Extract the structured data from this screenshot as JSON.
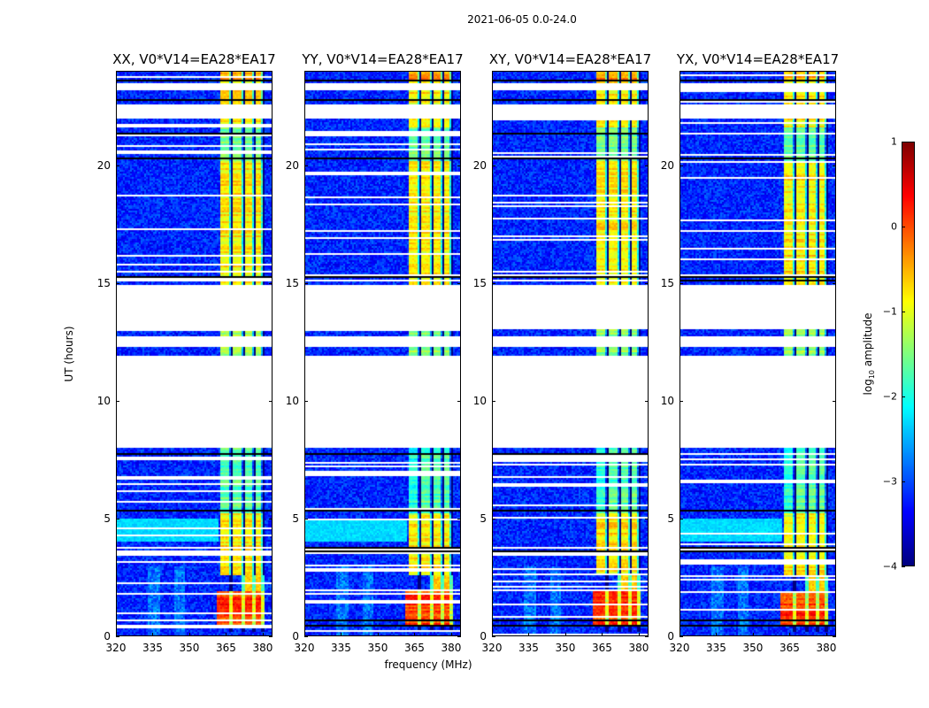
{
  "chart_data": {
    "type": "heatmap",
    "title": "2021-06-05 0.0-24.0",
    "xlabel": "frequency (MHz)",
    "ylabel": "UT (hours)",
    "xlim": [
      320,
      384
    ],
    "ylim": [
      0,
      24
    ],
    "xticks": [
      "320",
      "335",
      "350",
      "365",
      "380"
    ],
    "yticks": [
      "0",
      "5",
      "10",
      "15",
      "20"
    ],
    "panels": [
      {
        "title": "XX, V0*V14=EA28*EA17",
        "seed": 1
      },
      {
        "title": "YY, V0*V14=EA28*EA17",
        "seed": 2
      },
      {
        "title": "XY, V0*V14=EA28*EA17",
        "seed": 3
      },
      {
        "title": "YX, V0*V14=EA28*EA17",
        "seed": 4
      }
    ],
    "colorbar": {
      "label_main": "log",
      "label_sub": "10",
      "label_rest": " amplitude",
      "range": [
        -4,
        1
      ],
      "ticks": [
        "1",
        "0",
        "−1",
        "−2",
        "−3",
        "−4"
      ],
      "colormap": "jet"
    },
    "background_level": -3.2,
    "rfi_bands_mhz": [
      [
        363,
        367
      ],
      [
        368,
        372
      ],
      [
        372.5,
        376.5
      ],
      [
        377,
        380
      ]
    ],
    "rfi_level": -0.8,
    "strong_rfi": {
      "hours": [
        0.4,
        1.9
      ],
      "mhz": [
        361,
        381
      ],
      "level": 0.1
    },
    "blank_hours": [
      [
        8.0,
        11.9
      ],
      [
        13.0,
        14.9
      ],
      [
        22.0,
        22.6
      ]
    ],
    "flagged_hours": [
      0.45,
      0.65,
      3.6,
      3.75,
      5.3,
      7.7,
      15.1,
      15.25,
      20.25,
      21.35,
      22.75,
      23.55
    ]
  }
}
